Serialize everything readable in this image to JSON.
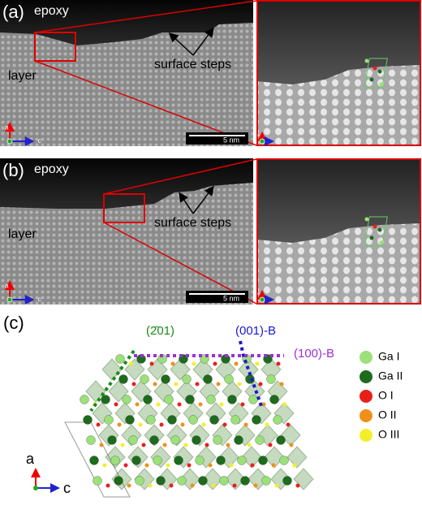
{
  "panels": [
    {
      "label": "(a)",
      "top_text": "epoxy",
      "left_text": "layer",
      "annotation": "surface steps",
      "scale_bar": "5 nm",
      "axes": [
        "a",
        "c"
      ]
    },
    {
      "label": "(b)",
      "top_text": "epoxy",
      "left_text": "layer",
      "annotation": "surface steps",
      "scale_bar": "5 nm",
      "axes": [
        "a",
        "c"
      ]
    }
  ],
  "structure": {
    "label": "(c)",
    "planes": [
      {
        "name": "(2̄01)",
        "color": "#1a8a1a"
      },
      {
        "name": "(001)-B",
        "color": "#1a1acc"
      },
      {
        "name": "(100)-B",
        "color": "#9b30d9"
      }
    ],
    "legend": [
      {
        "name": "Ga I",
        "color": "#9be07a"
      },
      {
        "name": "Ga II",
        "color": "#1e6b1e"
      },
      {
        "name": "O I",
        "color": "#e8201a"
      },
      {
        "name": "O II",
        "color": "#f0901a"
      },
      {
        "name": "O III",
        "color": "#f2ef2a"
      }
    ],
    "axes": [
      "a",
      "c"
    ]
  }
}
